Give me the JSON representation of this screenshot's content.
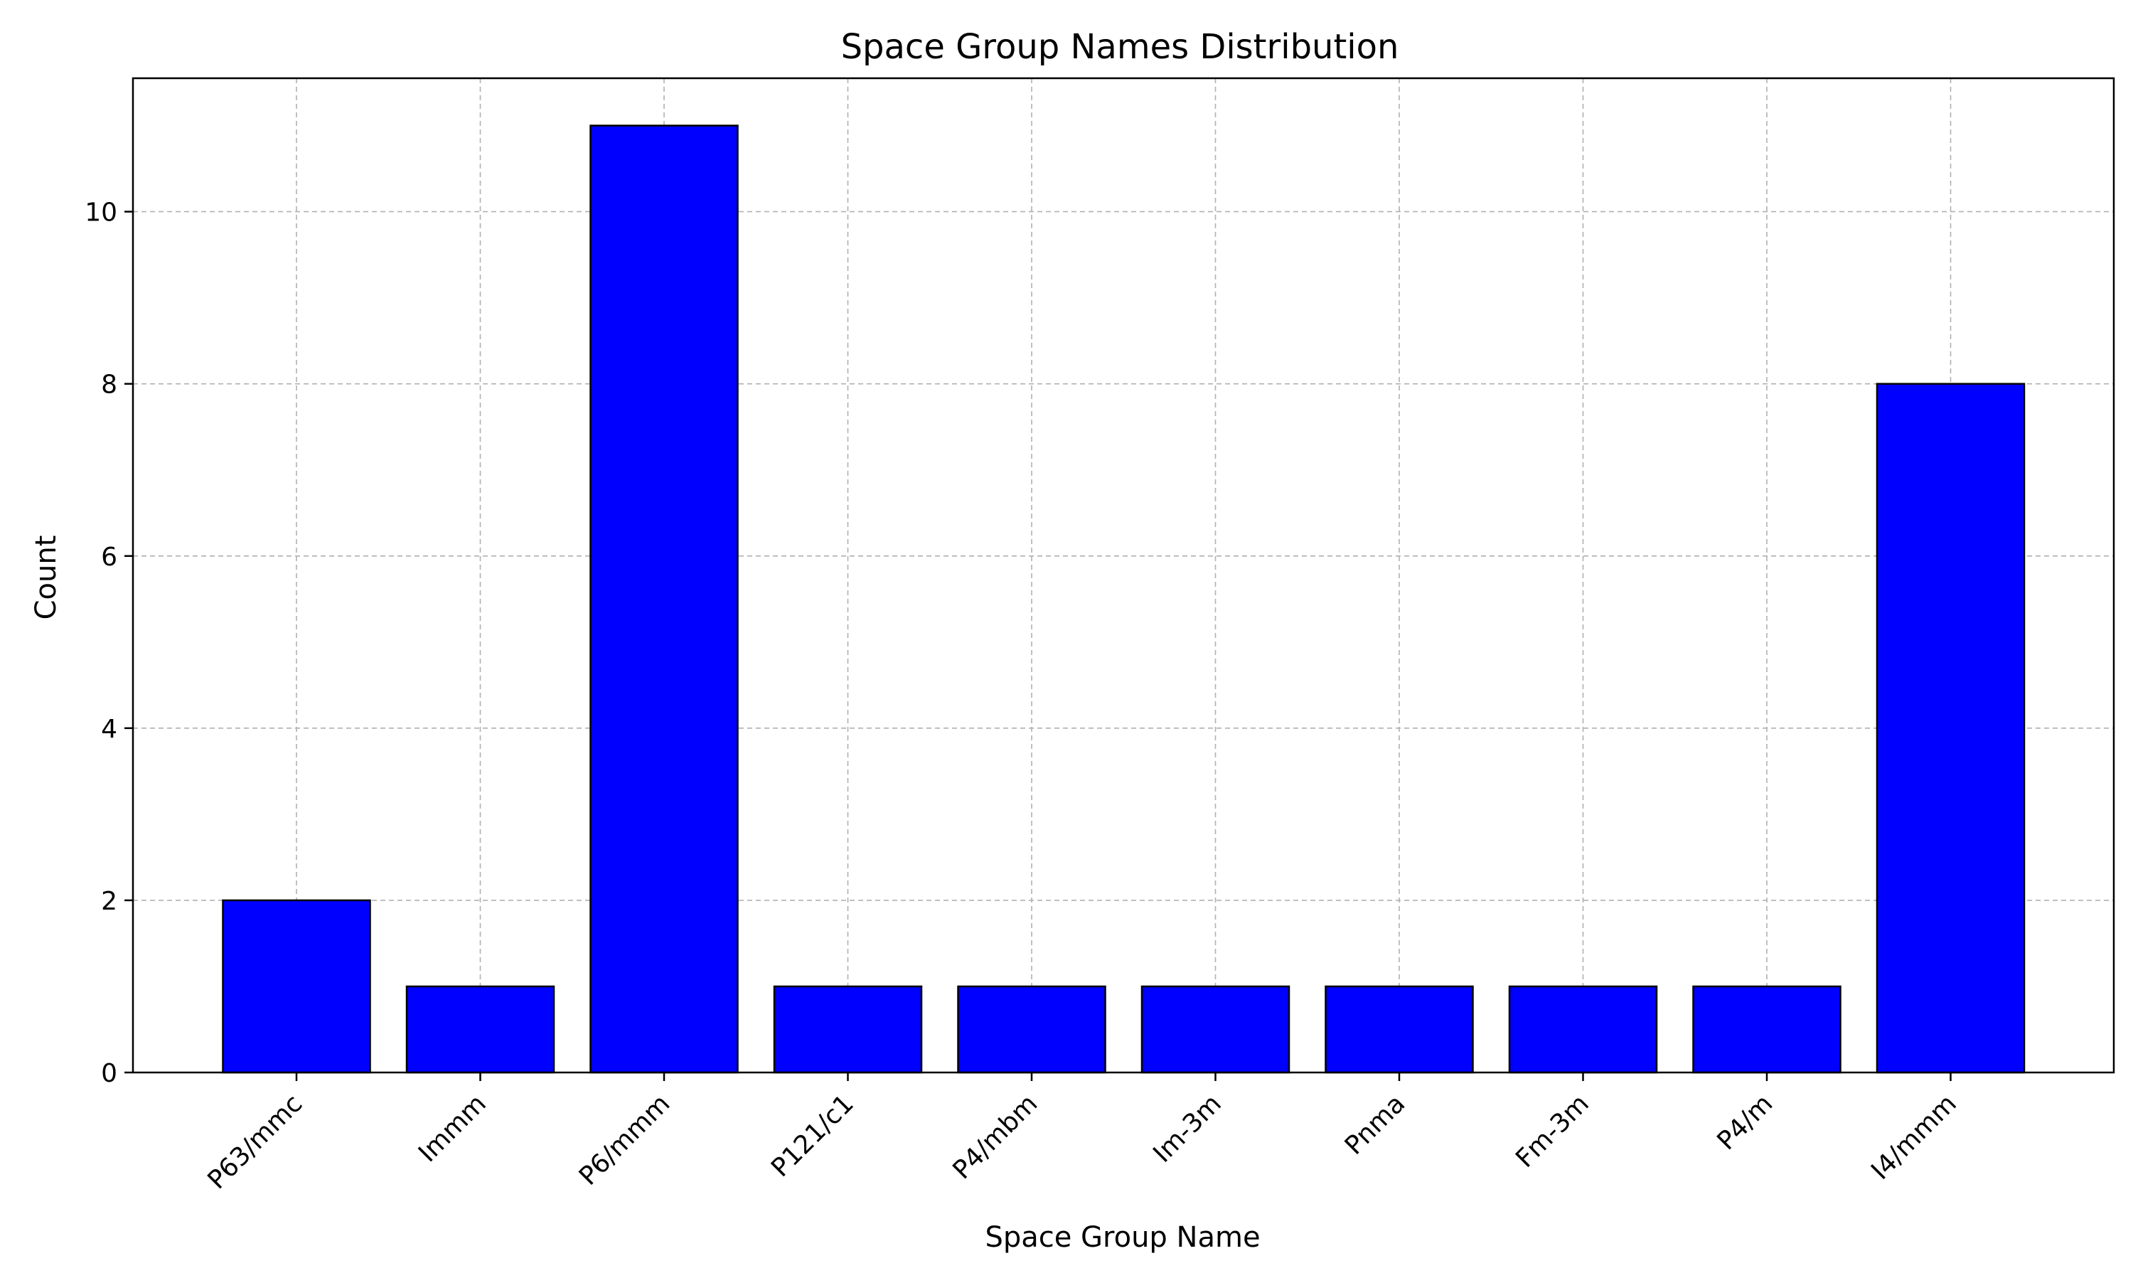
{
  "chart_data": {
    "type": "bar",
    "title": "Space Group Names Distribution",
    "xlabel": "Space Group Name",
    "ylabel": "Count",
    "categories": [
      "P63/mmc",
      "Immm",
      "P6/mmm",
      "P121/c1",
      "P4/mbm",
      "Im-3m",
      "Pnma",
      "Fm-3m",
      "P4/m",
      "I4/mmm"
    ],
    "values": [
      2,
      1,
      11,
      1,
      1,
      1,
      1,
      1,
      1,
      8
    ],
    "ylim": [
      0,
      11.55
    ],
    "yticks": [
      0,
      2,
      4,
      6,
      8,
      10
    ],
    "grid": true,
    "bar_color": "#0000ff",
    "edge_color": "#000000",
    "grid_color": "#b0b0b0"
  }
}
